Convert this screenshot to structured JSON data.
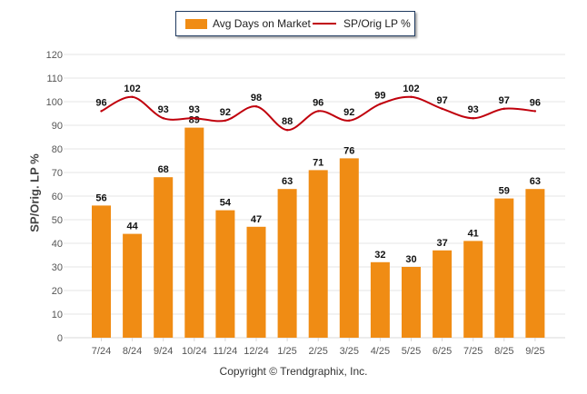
{
  "chart_data": {
    "type": "bar+line",
    "categories": [
      "7/24",
      "8/24",
      "9/24",
      "10/24",
      "11/24",
      "12/24",
      "1/25",
      "2/25",
      "3/25",
      "4/25",
      "5/25",
      "6/25",
      "7/25",
      "8/25",
      "9/25"
    ],
    "series": [
      {
        "name": "Avg Days on Market",
        "type": "bar",
        "color": "#F08C14",
        "values": [
          56,
          44,
          68,
          89,
          54,
          47,
          63,
          71,
          76,
          32,
          30,
          37,
          41,
          59,
          63
        ]
      },
      {
        "name": "SP/Orig LP %",
        "type": "line",
        "color": "#C0000C",
        "values": [
          96,
          102,
          93,
          93,
          92,
          98,
          88,
          96,
          92,
          99,
          102,
          97,
          93,
          97,
          96
        ]
      }
    ],
    "ylabel": "SP/Orig. LP %",
    "xlabel": "",
    "ylim": [
      0,
      120
    ],
    "yticks": [
      0,
      10,
      20,
      30,
      40,
      50,
      60,
      70,
      80,
      90,
      100,
      110,
      120
    ],
    "grid": true,
    "legend_position": "top-center"
  },
  "footer": {
    "copyright": "Copyright © Trendgraphix, Inc."
  },
  "colors": {
    "bar": "#F08C14",
    "line": "#C0000C",
    "grid": "#e6e6e6"
  }
}
